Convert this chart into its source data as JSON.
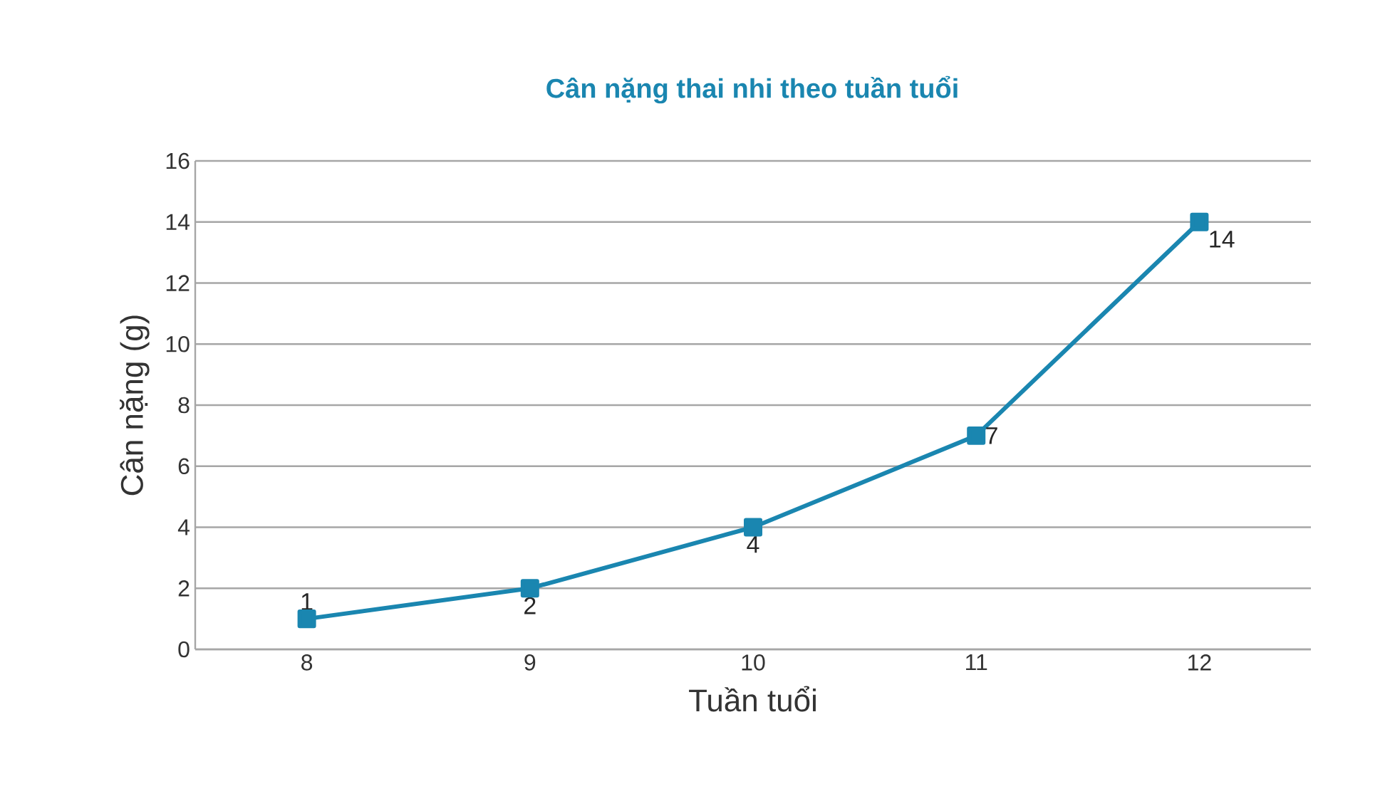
{
  "chart_data": {
    "type": "line",
    "title": "Cân nặng thai nhi theo tuần tuổi",
    "xlabel": "Tuần tuổi",
    "ylabel": "Cân nặng (g)",
    "categories": [
      "8",
      "9",
      "10",
      "11",
      "12"
    ],
    "values": [
      1,
      2,
      4,
      7,
      14
    ],
    "color": "#1a86b0",
    "ylim": [
      0,
      16
    ],
    "yticks": [
      0,
      2,
      4,
      6,
      8,
      10,
      12,
      14,
      16
    ],
    "grid": "y",
    "marker": "square",
    "line_style": "solid",
    "data_labels": true
  }
}
